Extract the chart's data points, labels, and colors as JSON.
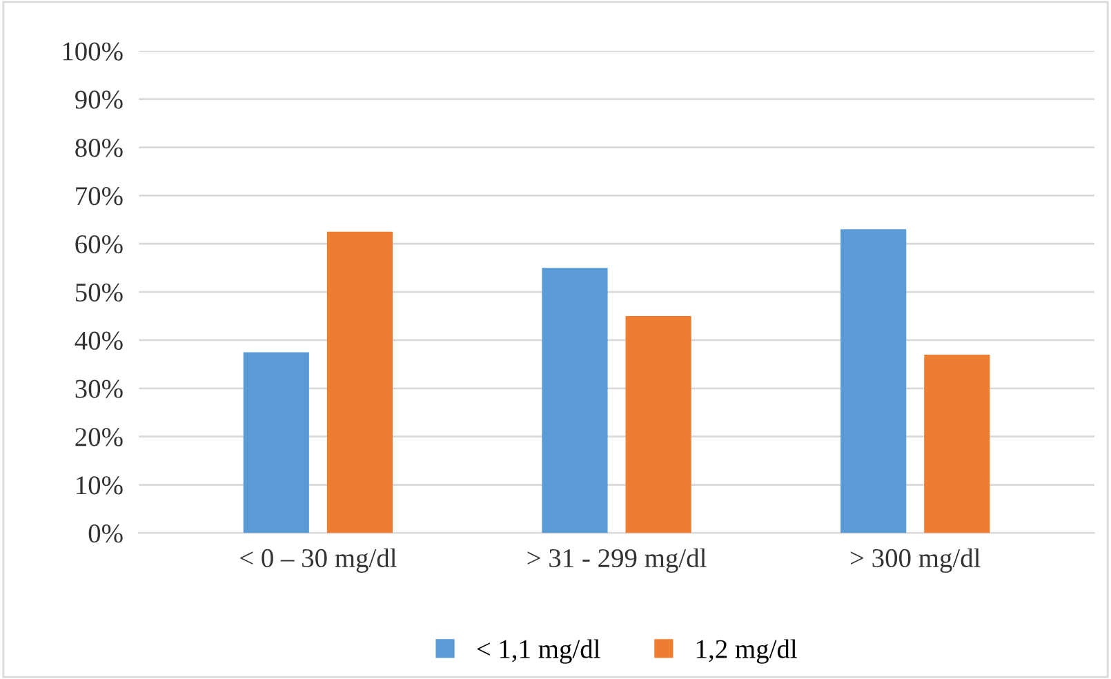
{
  "chart_data": {
    "type": "bar",
    "categories": [
      "< 0 – 30 mg/dl",
      "> 31 - 299 mg/dl",
      "> 300 mg/dl"
    ],
    "series": [
      {
        "name": "< 1,1 mg/dl",
        "color": "#5b9bd5",
        "values": [
          37.5,
          55,
          63
        ]
      },
      {
        "name": "1,2 mg/dl",
        "color": "#ed7d31",
        "values": [
          62.5,
          45,
          37
        ]
      }
    ],
    "ylim": [
      0,
      100
    ],
    "yticks": [
      {
        "value": 0,
        "label": "0%"
      },
      {
        "value": 10,
        "label": "10%"
      },
      {
        "value": 20,
        "label": "20%"
      },
      {
        "value": 30,
        "label": "30%"
      },
      {
        "value": 40,
        "label": "40%"
      },
      {
        "value": 50,
        "label": "50%"
      },
      {
        "value": 60,
        "label": "60%"
      },
      {
        "value": 70,
        "label": "70%"
      },
      {
        "value": 80,
        "label": "80%"
      },
      {
        "value": 90,
        "label": "90%"
      },
      {
        "value": 100,
        "label": "100%"
      }
    ],
    "grid": "y",
    "legend": "bottom"
  }
}
